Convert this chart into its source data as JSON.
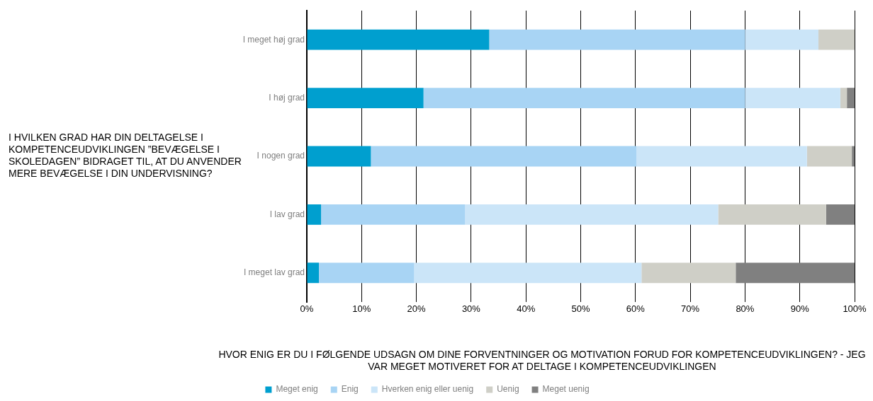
{
  "chart_data": {
    "type": "bar",
    "orientation": "horizontal",
    "stacked": true,
    "ylabel": "I HVILKEN GRAD HAR DIN DELTAGELSE I KOMPETENCEUDVIKLINGEN ”BEVÆGELSE I SKOLEDAGEN” BIDRAGET TIL, AT DU ANVENDER MERE BEVÆGELSE I DIN UNDERVISNING?",
    "xlabel": "HVOR ENIG ER DU I FØLGENDE UDSAGN OM DINE FORVENTNINGER OG MOTIVATION FORUD FOR KOMPETENCEUDVIKLINGEN? - JEG VAR MEGET MOTIVERET FOR AT DELTAGE I KOMPETENCEUDVIKLINGEN",
    "categories": [
      "I meget høj grad",
      "I høj grad",
      "I nogen grad",
      "I lav grad",
      "I meget lav grad"
    ],
    "series": [
      {
        "name": "Meget enig",
        "color": "#009fcf",
        "values": [
          33.3,
          21.3,
          11.7,
          2.6,
          2.2
        ]
      },
      {
        "name": "Enig",
        "color": "#a8d4f4",
        "values": [
          46.7,
          58.7,
          48.5,
          26.3,
          17.4
        ]
      },
      {
        "name": "Hverken enig eller uenig",
        "color": "#cbe5f8",
        "values": [
          13.4,
          17.4,
          31.1,
          46.2,
          41.5
        ]
      },
      {
        "name": "Uenig",
        "color": "#cfcfc7",
        "values": [
          6.6,
          1.2,
          8.2,
          19.7,
          17.2
        ]
      },
      {
        "name": "Meget uenig",
        "color": "#808080",
        "values": [
          0,
          1.4,
          0.5,
          5.2,
          21.7
        ]
      }
    ],
    "xlim": [
      0,
      100
    ],
    "xticks": [
      {
        "value": 0,
        "label": "0%"
      },
      {
        "value": 10,
        "label": "10%"
      },
      {
        "value": 20,
        "label": "20%"
      },
      {
        "value": 30,
        "label": "30%"
      },
      {
        "value": 40,
        "label": "40%"
      },
      {
        "value": 50,
        "label": "50%"
      },
      {
        "value": 60,
        "label": "60%"
      },
      {
        "value": 70,
        "label": "70%"
      },
      {
        "value": 80,
        "label": "80%"
      },
      {
        "value": 90,
        "label": "90%"
      },
      {
        "value": 100,
        "label": "100%"
      }
    ],
    "grid": "x",
    "legend": "bottom"
  }
}
